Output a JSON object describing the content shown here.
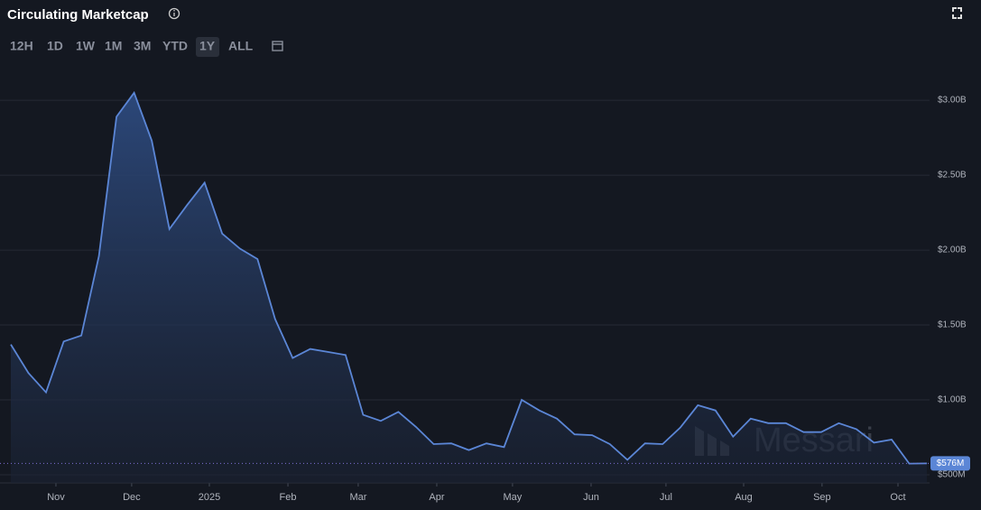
{
  "header": {
    "title": "Circulating Marketcap",
    "ranges": [
      "12H",
      "1D",
      "1W",
      "1M",
      "3M",
      "YTD",
      "1Y",
      "ALL"
    ],
    "active_range": "1Y"
  },
  "watermark": "Messari",
  "chart_data": {
    "type": "area",
    "color": "#5b86d6",
    "grid": true,
    "x": [
      0,
      1,
      2,
      3,
      4,
      5,
      6,
      7,
      8,
      9,
      10,
      11,
      12,
      13,
      14,
      15,
      16,
      17,
      18,
      19,
      20,
      21,
      22,
      23,
      24,
      25,
      26,
      27,
      28,
      29,
      30,
      31,
      32,
      33,
      34,
      35,
      36,
      37,
      38,
      39,
      40,
      41,
      42,
      43,
      44,
      45,
      46,
      47,
      48,
      49,
      50,
      51,
      52
    ],
    "values": [
      1370000000,
      1180000000,
      1050000000,
      1390000000,
      1430000000,
      1960000000,
      2890000000,
      3050000000,
      2730000000,
      2140000000,
      2300000000,
      2450000000,
      2110000000,
      2010000000,
      1940000000,
      1540000000,
      1280000000,
      1340000000,
      1320000000,
      1300000000,
      900000000,
      860000000,
      920000000,
      820000000,
      705000000,
      710000000,
      665000000,
      710000000,
      685000000,
      1000000000,
      930000000,
      875000000,
      770000000,
      765000000,
      705000000,
      600000000,
      710000000,
      705000000,
      815000000,
      965000000,
      930000000,
      755000000,
      875000000,
      845000000,
      845000000,
      785000000,
      785000000,
      845000000,
      805000000,
      715000000,
      735000000,
      575000000,
      576000000
    ],
    "value_labels": [
      null,
      null,
      null,
      null,
      null,
      null,
      null,
      null,
      null,
      null,
      null,
      null,
      null,
      null,
      null,
      null,
      null,
      null,
      null,
      null,
      null,
      null,
      null,
      null,
      null,
      null,
      null,
      null,
      null,
      null,
      null,
      null,
      null,
      null,
      null,
      null,
      null,
      null,
      null,
      null,
      null,
      null,
      null,
      null,
      null,
      null,
      null,
      null,
      null,
      null,
      null,
      null,
      "$576M"
    ],
    "xlim": [
      0,
      52
    ],
    "xticks": [
      {
        "value": 2.56,
        "label": "Nov"
      },
      {
        "value": 6.86,
        "label": "Dec"
      },
      {
        "value": 11.27,
        "label": "2025"
      },
      {
        "value": 15.73,
        "label": "Feb"
      },
      {
        "value": 19.72,
        "label": "Mar"
      },
      {
        "value": 24.18,
        "label": "Apr"
      },
      {
        "value": 28.48,
        "label": "May"
      },
      {
        "value": 32.94,
        "label": "Jun"
      },
      {
        "value": 37.19,
        "label": "Jul"
      },
      {
        "value": 41.6,
        "label": "Aug"
      },
      {
        "value": 46.05,
        "label": "Sep"
      },
      {
        "value": 50.36,
        "label": "Oct"
      }
    ],
    "ylim": [
      446000000,
      3127000000
    ],
    "yticks": [
      {
        "value": 500000000,
        "label": "$500M"
      },
      {
        "value": 1000000000,
        "label": "$1.00B"
      },
      {
        "value": 1500000000,
        "label": "$1.50B"
      },
      {
        "value": 2000000000,
        "label": "$2.00B"
      },
      {
        "value": 2500000000,
        "label": "$2.50B"
      },
      {
        "value": 3000000000,
        "label": "$3.00B"
      }
    ]
  }
}
